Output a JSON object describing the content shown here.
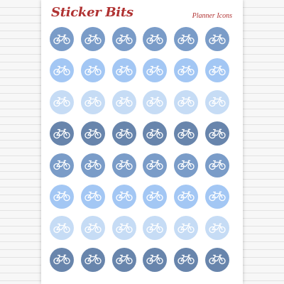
{
  "brand": "Sticker Bits",
  "subtitle": "Planner Icons",
  "colors": {
    "brand": "#b03232",
    "icon": "#ffffff",
    "row_colors": [
      "#7a9cc8",
      "#a3c7f4",
      "#c6dcf5",
      "#6885ac",
      "#7a9cc8",
      "#a3c7f4",
      "#c6dcf5",
      "#6885ac"
    ]
  },
  "icon": "bicycle-icon",
  "grid": {
    "rows": 8,
    "columns": 6
  }
}
